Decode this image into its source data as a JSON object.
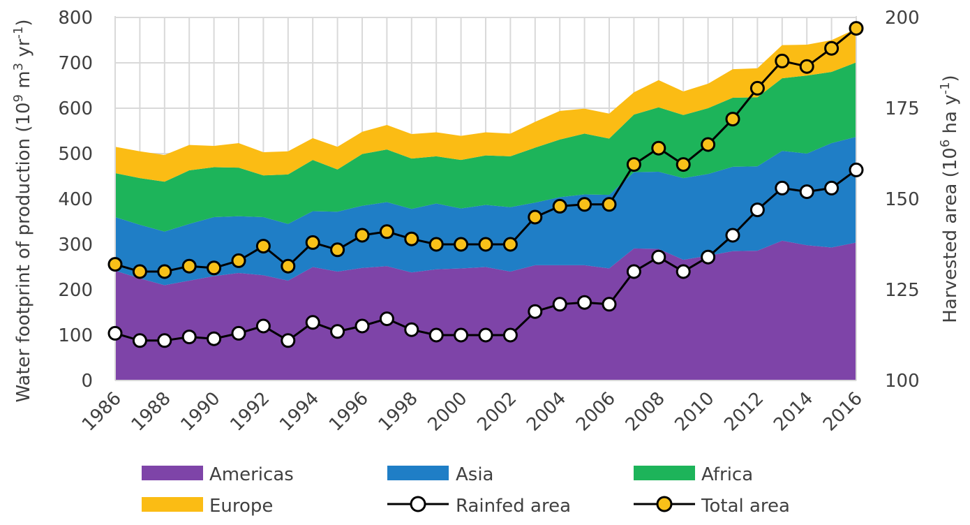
{
  "chart_data": {
    "type": "area",
    "stacked": true,
    "x": [
      1986,
      1987,
      1988,
      1989,
      1990,
      1991,
      1992,
      1993,
      1994,
      1995,
      1996,
      1997,
      1998,
      1999,
      2000,
      2001,
      2002,
      2003,
      2004,
      2005,
      2006,
      2007,
      2008,
      2009,
      2010,
      2011,
      2012,
      2013,
      2014,
      2015,
      2016
    ],
    "series": [
      {
        "name": "Americas",
        "color": "#7e44a8",
        "values": [
          242,
          225,
          210,
          220,
          230,
          237,
          232,
          220,
          250,
          240,
          248,
          252,
          238,
          245,
          247,
          250,
          240,
          254,
          254,
          254,
          247,
          291,
          290,
          266,
          275,
          285,
          286,
          308,
          298,
          293,
          304
        ]
      },
      {
        "name": "Asia",
        "color": "#1f7ec6",
        "values": [
          118,
          118,
          118,
          125,
          130,
          125,
          128,
          125,
          123,
          132,
          137,
          141,
          140,
          145,
          132,
          137,
          142,
          138,
          150,
          156,
          162,
          168,
          170,
          180,
          180,
          186,
          186,
          198,
          202,
          230,
          233
        ]
      },
      {
        "name": "Africa",
        "color": "#1db45a",
        "values": [
          97,
          103,
          110,
          118,
          110,
          107,
          92,
          109,
          113,
          93,
          114,
          116,
          111,
          104,
          107,
          109,
          112,
          121,
          127,
          134,
          124,
          127,
          142,
          139,
          145,
          152,
          152,
          160,
          172,
          157,
          164
        ]
      },
      {
        "name": "Europe",
        "color": "#fbbc14",
        "values": [
          58,
          59,
          59,
          56,
          47,
          54,
          51,
          51,
          48,
          50,
          49,
          54,
          54,
          53,
          53,
          51,
          50,
          57,
          63,
          55,
          55,
          49,
          60,
          52,
          54,
          63,
          64,
          73,
          68,
          70,
          74
        ]
      }
    ],
    "lines": [
      {
        "name": "Rainfed area",
        "axis": "right",
        "marker_fill": "#ffffff",
        "values": [
          113,
          111,
          111,
          112,
          111.5,
          113,
          115,
          111,
          116,
          113.5,
          115,
          117,
          114,
          112.5,
          112.5,
          112.5,
          112.5,
          119,
          121,
          121.5,
          121,
          130,
          134,
          130,
          134,
          140,
          147,
          153,
          152,
          153,
          158
        ]
      },
      {
        "name": "Total area",
        "axis": "right",
        "marker_fill": "#f8c119",
        "values": [
          132,
          130,
          130,
          131.5,
          131,
          133,
          137,
          131.5,
          138,
          136,
          140,
          141,
          139,
          137.5,
          137.5,
          137.5,
          137.5,
          145,
          148,
          148.5,
          148.5,
          159.5,
          164,
          159.5,
          165,
          172,
          180.5,
          188,
          186.5,
          191.5,
          197
        ]
      }
    ],
    "ylabel_left_main": "Water footprint of production (10",
    "ylabel_left_sup1": "9",
    "ylabel_left_mid": " m",
    "ylabel_left_sup2": "3",
    "ylabel_left_mid2": " yr",
    "ylabel_left_sup3": "-1",
    "ylabel_left_end": ")",
    "ylabel_right_main": "Harvested area (10",
    "ylabel_right_sup1": "6",
    "ylabel_right_mid": " ha y",
    "ylabel_right_sup2": "-1",
    "ylabel_right_end": ")",
    "ylim_left": [
      0,
      800
    ],
    "ylim_right": [
      100,
      200
    ],
    "yticks_left": [
      "0",
      "100",
      "200",
      "300",
      "400",
      "500",
      "600",
      "700",
      "800"
    ],
    "yticks_right": [
      "100",
      "125",
      "150",
      "175",
      "200"
    ],
    "xticks": [
      "1986",
      "1988",
      "1990",
      "1992",
      "1994",
      "1996",
      "1998",
      "2000",
      "2002",
      "2004",
      "2006",
      "2008",
      "2010",
      "2012",
      "2014",
      "2016"
    ],
    "grid": true,
    "legend_position": "bottom",
    "legend": [
      "Americas",
      "Asia",
      "Africa",
      "Europe",
      "Rainfed area",
      "Total area"
    ]
  }
}
